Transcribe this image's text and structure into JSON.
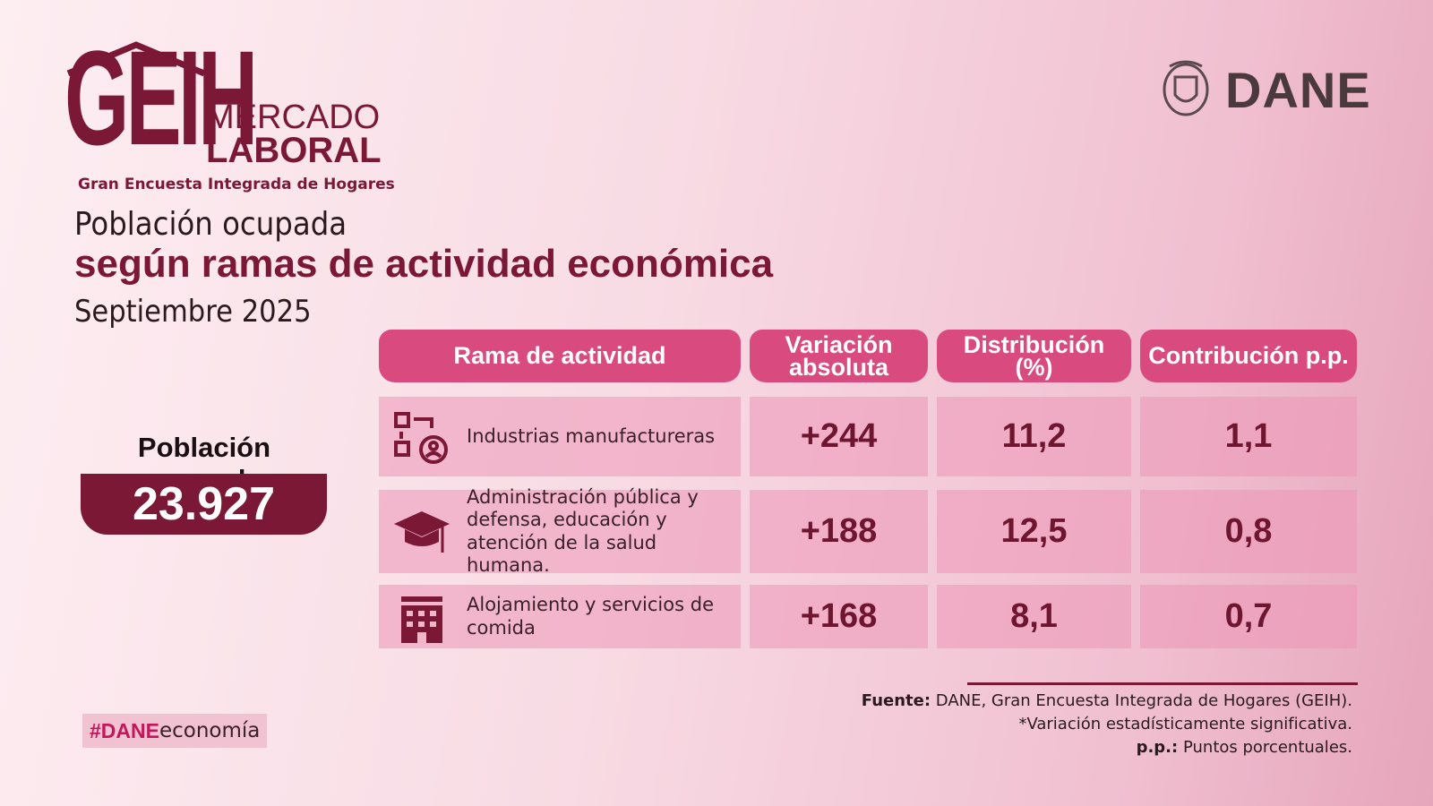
{
  "logo": {
    "mark": "GEIH",
    "line1": "MERCADO",
    "line2": "LABORAL",
    "subtitle": "Gran Encuesta Integrada de Hogares"
  },
  "brand": "DANE",
  "header": {
    "line1": "Población ocupada",
    "line2": "según ramas de actividad económica",
    "date": "Septiembre 2025"
  },
  "summary": {
    "label": "Población ocupada",
    "value": "23.927"
  },
  "table": {
    "columns": [
      "Rama de actividad",
      "Variación absoluta",
      "Distribución (%)",
      "Contribución p.p."
    ],
    "rows": [
      [
        "Industrias manufactureras",
        "+244",
        "11,2",
        "1,1"
      ],
      [
        "Administración pública y defensa, educación y atención de la salud humana.",
        "+188",
        "12,5",
        "0,8"
      ],
      [
        "Alojamiento y servicios de comida",
        "+168",
        "8,1",
        "0,7"
      ]
    ]
  },
  "footer": {
    "source_label": "Fuente:",
    "source": "DANE, Gran Encuesta Integrada de Hogares (GEIH).",
    "note": "*Variación estadísticamente significativa.",
    "pp_label": "p.p.:",
    "pp": "Puntos porcentuales."
  },
  "hashtag": {
    "bold": "#DANE",
    "rest": "economía"
  }
}
